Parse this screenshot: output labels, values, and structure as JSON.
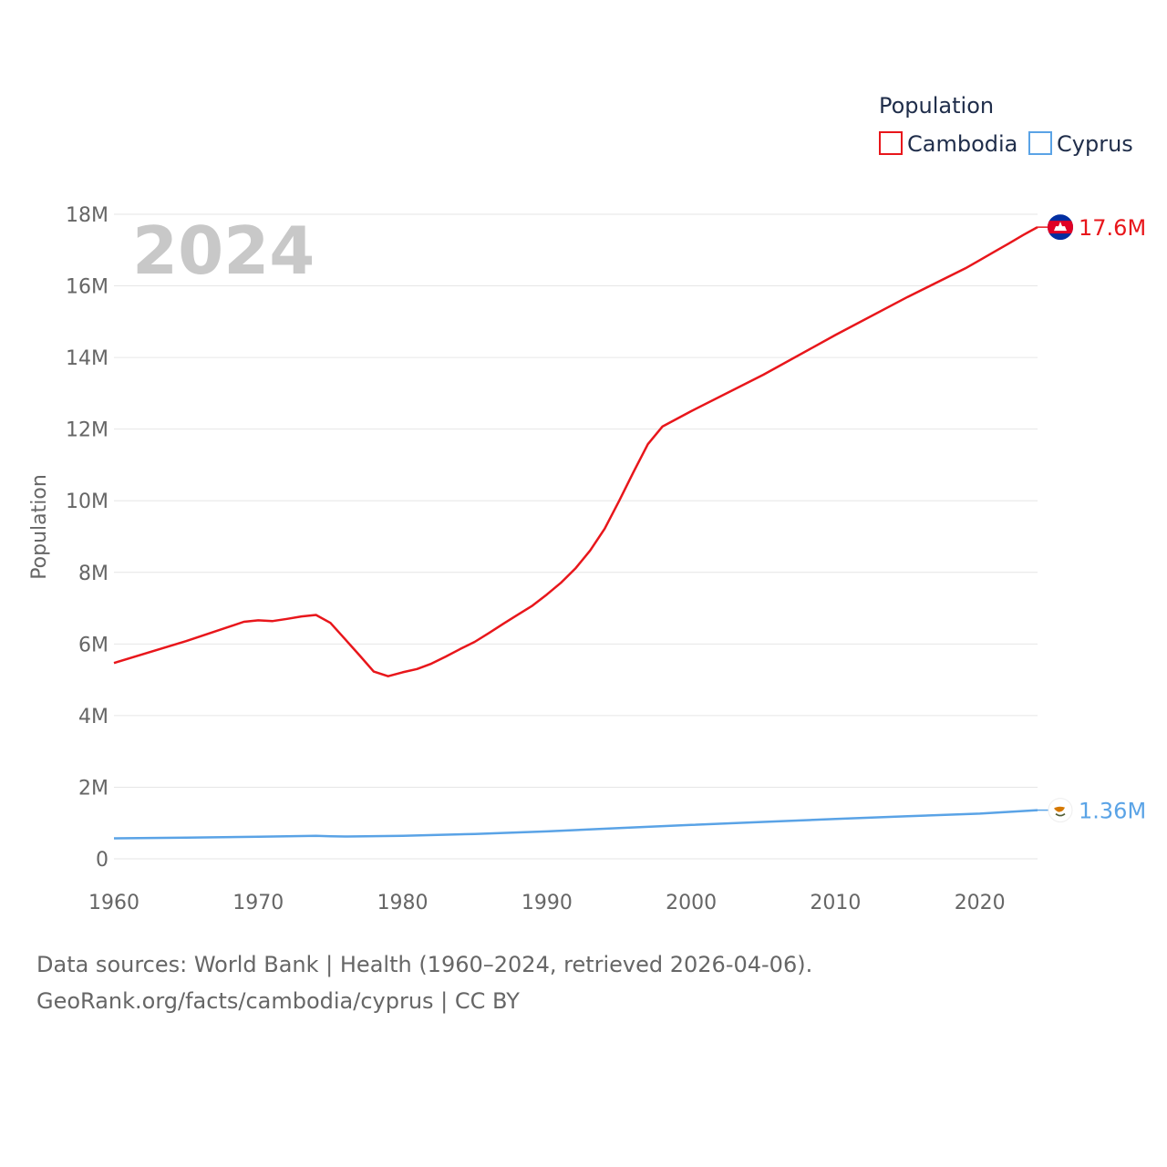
{
  "chart_data": {
    "type": "line",
    "title_year": "2024",
    "ylabel": "Population",
    "legend_title": "Population",
    "ylim": [
      0,
      18000000
    ],
    "xlim": [
      1960,
      2024
    ],
    "y_ticks": [
      {
        "value": 0,
        "label": "0"
      },
      {
        "value": 2000000,
        "label": "2M"
      },
      {
        "value": 4000000,
        "label": "4M"
      },
      {
        "value": 6000000,
        "label": "6M"
      },
      {
        "value": 8000000,
        "label": "8M"
      },
      {
        "value": 10000000,
        "label": "10M"
      },
      {
        "value": 12000000,
        "label": "12M"
      },
      {
        "value": 14000000,
        "label": "14M"
      },
      {
        "value": 16000000,
        "label": "16M"
      },
      {
        "value": 18000000,
        "label": "18M"
      }
    ],
    "x_ticks": [
      {
        "value": 1960,
        "label": "1960"
      },
      {
        "value": 1970,
        "label": "1970"
      },
      {
        "value": 1980,
        "label": "1980"
      },
      {
        "value": 1990,
        "label": "1990"
      },
      {
        "value": 2000,
        "label": "2000"
      },
      {
        "value": 2010,
        "label": "2010"
      },
      {
        "value": 2020,
        "label": "2020"
      }
    ],
    "series": [
      {
        "name": "Cambodia",
        "color": "#e8161b",
        "end_label": "17.6M",
        "flag": "cambodia-flag",
        "points": [
          [
            1960,
            5470000
          ],
          [
            1965,
            6080000
          ],
          [
            1969,
            6620000
          ],
          [
            1970,
            6660000
          ],
          [
            1971,
            6640000
          ],
          [
            1972,
            6700000
          ],
          [
            1973,
            6770000
          ],
          [
            1974,
            6810000
          ],
          [
            1975,
            6590000
          ],
          [
            1976,
            6140000
          ],
          [
            1977,
            5690000
          ],
          [
            1978,
            5230000
          ],
          [
            1979,
            5100000
          ],
          [
            1980,
            5210000
          ],
          [
            1981,
            5300000
          ],
          [
            1982,
            5450000
          ],
          [
            1983,
            5650000
          ],
          [
            1984,
            5860000
          ],
          [
            1985,
            6060000
          ],
          [
            1986,
            6310000
          ],
          [
            1987,
            6570000
          ],
          [
            1988,
            6820000
          ],
          [
            1989,
            7070000
          ],
          [
            1990,
            7380000
          ],
          [
            1991,
            7720000
          ],
          [
            1992,
            8120000
          ],
          [
            1993,
            8610000
          ],
          [
            1994,
            9220000
          ],
          [
            1995,
            9990000
          ],
          [
            1996,
            10800000
          ],
          [
            1997,
            11580000
          ],
          [
            1998,
            12070000
          ],
          [
            2000,
            12500000
          ],
          [
            2005,
            13520000
          ],
          [
            2010,
            14630000
          ],
          [
            2015,
            15690000
          ],
          [
            2019,
            16490000
          ],
          [
            2020,
            16720000
          ],
          [
            2021,
            16950000
          ],
          [
            2022,
            17180000
          ],
          [
            2023,
            17420000
          ],
          [
            2024,
            17640000
          ]
        ]
      },
      {
        "name": "Cyprus",
        "color": "#5aa3e6",
        "end_label": "1.36M",
        "flag": "cyprus-flag",
        "points": [
          [
            1960,
            572000
          ],
          [
            1965,
            590000
          ],
          [
            1970,
            615000
          ],
          [
            1974,
            641000
          ],
          [
            1975,
            630000
          ],
          [
            1976,
            625000
          ],
          [
            1980,
            645000
          ],
          [
            1985,
            695000
          ],
          [
            1990,
            767000
          ],
          [
            1995,
            857000
          ],
          [
            2000,
            948000
          ],
          [
            2005,
            1030000
          ],
          [
            2010,
            1112000
          ],
          [
            2015,
            1188000
          ],
          [
            2020,
            1263000
          ],
          [
            2024,
            1360000
          ]
        ]
      }
    ]
  },
  "footer": {
    "line1": "Data sources: World Bank | Health (1960–2024, retrieved 2026-04-06).",
    "line2": "GeoRank.org/facts/cambodia/cyprus | CC BY"
  }
}
